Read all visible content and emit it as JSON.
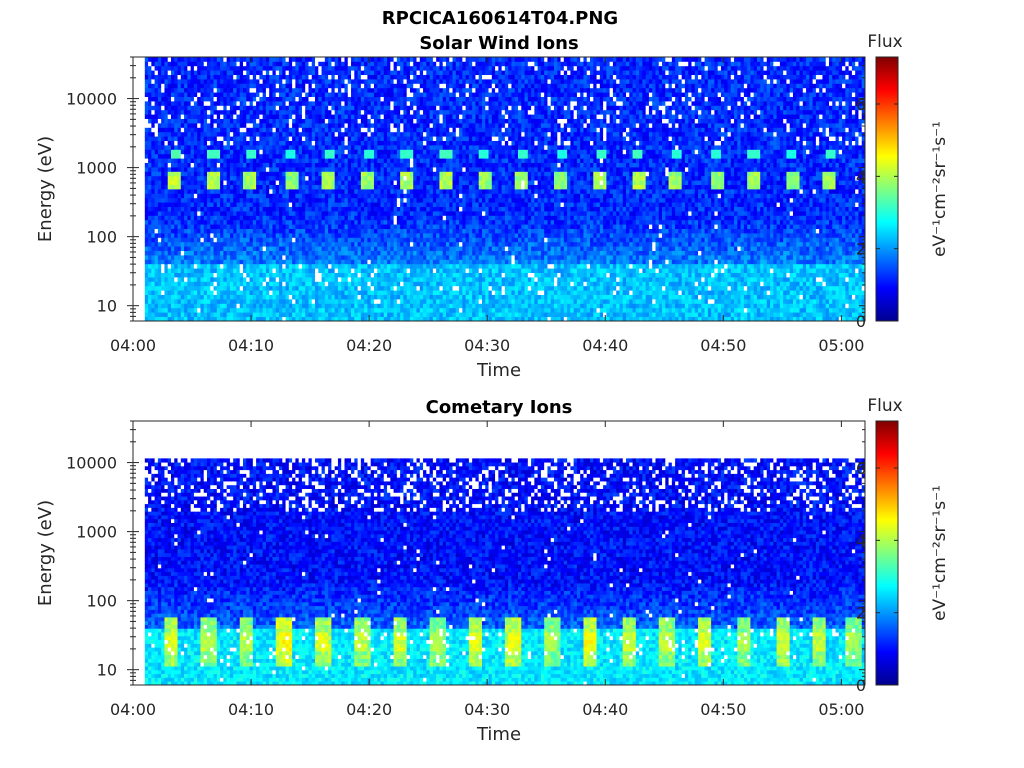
{
  "figure": {
    "title": "RPCICA160614T04.PNG"
  },
  "chart_data": [
    {
      "type": "heatmap",
      "title": "Solar Wind Ions",
      "xlabel": "Time",
      "ylabel": "Energy (eV)",
      "x_ticks": [
        "04:00",
        "04:10",
        "04:20",
        "04:30",
        "04:40",
        "04:50",
        "05:00"
      ],
      "x_range": [
        "04:00",
        "05:02"
      ],
      "data_start": "04:01",
      "y_scale": "log",
      "y_ticks": [
        "10",
        "100",
        "1000",
        "10000"
      ],
      "y_range": [
        6,
        40000
      ],
      "colorbar": {
        "title": "Flux",
        "unit": "eV⁻¹cm⁻²sr⁻¹s⁻¹",
        "ticks": [
          "0",
          "2",
          "4",
          "6"
        ],
        "range": [
          0,
          7.3
        ]
      },
      "colormap": "jet",
      "background_level": 1.2,
      "low_energy_band": {
        "energy_range": [
          6,
          40
        ],
        "level": 2.3
      },
      "pulses": [
        {
          "time": "04:03.6",
          "energy_eV": 700,
          "level": 4.1
        },
        {
          "time": "04:06.8",
          "energy_eV": 700,
          "level": 4.0
        },
        {
          "time": "04:10.0",
          "energy_eV": 700,
          "level": 3.9
        },
        {
          "time": "04:13.4",
          "energy_eV": 700,
          "level": 3.7
        },
        {
          "time": "04:16.6",
          "energy_eV": 700,
          "level": 3.9
        },
        {
          "time": "04:19.9",
          "energy_eV": 700,
          "level": 3.8
        },
        {
          "time": "04:23.2",
          "energy_eV": 700,
          "level": 3.9
        },
        {
          "time": "04:26.5",
          "energy_eV": 700,
          "level": 4.0
        },
        {
          "time": "04:29.8",
          "energy_eV": 700,
          "level": 3.8
        },
        {
          "time": "04:33.0",
          "energy_eV": 700,
          "level": 3.9
        },
        {
          "time": "04:36.3",
          "energy_eV": 700,
          "level": 3.7
        },
        {
          "time": "04:39.6",
          "energy_eV": 700,
          "level": 3.9
        },
        {
          "time": "04:42.8",
          "energy_eV": 700,
          "level": 4.0
        },
        {
          "time": "04:46.0",
          "energy_eV": 700,
          "level": 3.8
        },
        {
          "time": "04:49.4",
          "energy_eV": 700,
          "level": 3.8
        },
        {
          "time": "04:52.6",
          "energy_eV": 700,
          "level": 3.9
        },
        {
          "time": "04:55.8",
          "energy_eV": 700,
          "level": 3.7
        },
        {
          "time": "04:59.0",
          "energy_eV": 700,
          "level": 3.9
        }
      ]
    },
    {
      "type": "heatmap",
      "title": "Cometary Ions",
      "xlabel": "Time",
      "ylabel": "Energy (eV)",
      "x_ticks": [
        "04:00",
        "04:10",
        "04:20",
        "04:30",
        "04:40",
        "04:50",
        "05:00"
      ],
      "x_range": [
        "04:00",
        "05:02"
      ],
      "data_start": "04:01",
      "y_scale": "log",
      "y_ticks": [
        "10",
        "100",
        "1000",
        "10000"
      ],
      "y_range": [
        6,
        40000
      ],
      "data_energy_max": 11500,
      "colorbar": {
        "title": "Flux",
        "unit": "eV⁻¹cm⁻²sr⁻¹s⁻¹",
        "ticks": [
          "0",
          "2",
          "4",
          "6"
        ],
        "range": [
          0,
          7.3
        ]
      },
      "colormap": "jet",
      "background_level": 1.0,
      "low_energy_band": {
        "energy_range": [
          6,
          40
        ],
        "level": 2.6
      },
      "pulses": [
        {
          "time": "04:03.3",
          "energy_eV": 25,
          "level": 4.3
        },
        {
          "time": "04:06.4",
          "energy_eV": 25,
          "level": 4.1
        },
        {
          "time": "04:09.6",
          "energy_eV": 25,
          "level": 4.0
        },
        {
          "time": "04:12.8",
          "energy_eV": 25,
          "level": 4.6
        },
        {
          "time": "04:16.1",
          "energy_eV": 25,
          "level": 4.3
        },
        {
          "time": "04:19.4",
          "energy_eV": 25,
          "level": 4.1
        },
        {
          "time": "04:22.6",
          "energy_eV": 25,
          "level": 4.2
        },
        {
          "time": "04:25.8",
          "energy_eV": 25,
          "level": 4.0
        },
        {
          "time": "04:29.0",
          "energy_eV": 25,
          "level": 4.3
        },
        {
          "time": "04:32.2",
          "energy_eV": 25,
          "level": 4.4
        },
        {
          "time": "04:35.5",
          "energy_eV": 25,
          "level": 4.0
        },
        {
          "time": "04:38.7",
          "energy_eV": 25,
          "level": 4.5
        },
        {
          "time": "04:42.0",
          "energy_eV": 25,
          "level": 4.2
        },
        {
          "time": "04:45.2",
          "energy_eV": 25,
          "level": 4.1
        },
        {
          "time": "04:48.4",
          "energy_eV": 25,
          "level": 4.3
        },
        {
          "time": "04:51.7",
          "energy_eV": 25,
          "level": 4.0
        },
        {
          "time": "04:55.0",
          "energy_eV": 25,
          "level": 4.2
        },
        {
          "time": "04:58.2",
          "energy_eV": 25,
          "level": 4.1
        },
        {
          "time": "05:01.0",
          "energy_eV": 25,
          "level": 3.9
        }
      ]
    }
  ]
}
